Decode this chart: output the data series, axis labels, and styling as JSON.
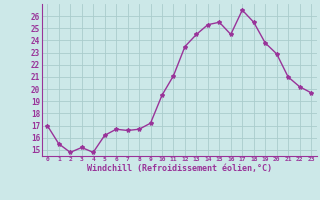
{
  "x": [
    0,
    1,
    2,
    3,
    4,
    5,
    6,
    7,
    8,
    9,
    10,
    11,
    12,
    13,
    14,
    15,
    16,
    17,
    18,
    19,
    20,
    21,
    22,
    23
  ],
  "y": [
    17.0,
    15.5,
    14.8,
    15.2,
    14.8,
    16.2,
    16.7,
    16.6,
    16.7,
    17.2,
    19.5,
    21.1,
    23.5,
    24.5,
    25.3,
    25.5,
    24.5,
    26.5,
    25.5,
    23.8,
    22.9,
    21.0,
    20.2,
    19.7
  ],
  "line_color": "#993399",
  "marker": "*",
  "marker_size": 3,
  "bg_color": "#cce8e8",
  "grid_color": "#aacccc",
  "xlabel": "Windchill (Refroidissement éolien,°C)",
  "xlabel_color": "#993399",
  "tick_color": "#993399",
  "ylim": [
    14.5,
    27.0
  ],
  "yticks": [
    15,
    16,
    17,
    18,
    19,
    20,
    21,
    22,
    23,
    24,
    25,
    26
  ],
  "xticks": [
    0,
    1,
    2,
    3,
    4,
    5,
    6,
    7,
    8,
    9,
    10,
    11,
    12,
    13,
    14,
    15,
    16,
    17,
    18,
    19,
    20,
    21,
    22,
    23
  ],
  "xtick_labels": [
    "0",
    "1",
    "2",
    "3",
    "4",
    "5",
    "6",
    "7",
    "8",
    "9",
    "10",
    "11",
    "12",
    "13",
    "14",
    "15",
    "16",
    "17",
    "18",
    "19",
    "20",
    "21",
    "22",
    "23"
  ],
  "spine_color": "#993399",
  "line_width": 1.0
}
